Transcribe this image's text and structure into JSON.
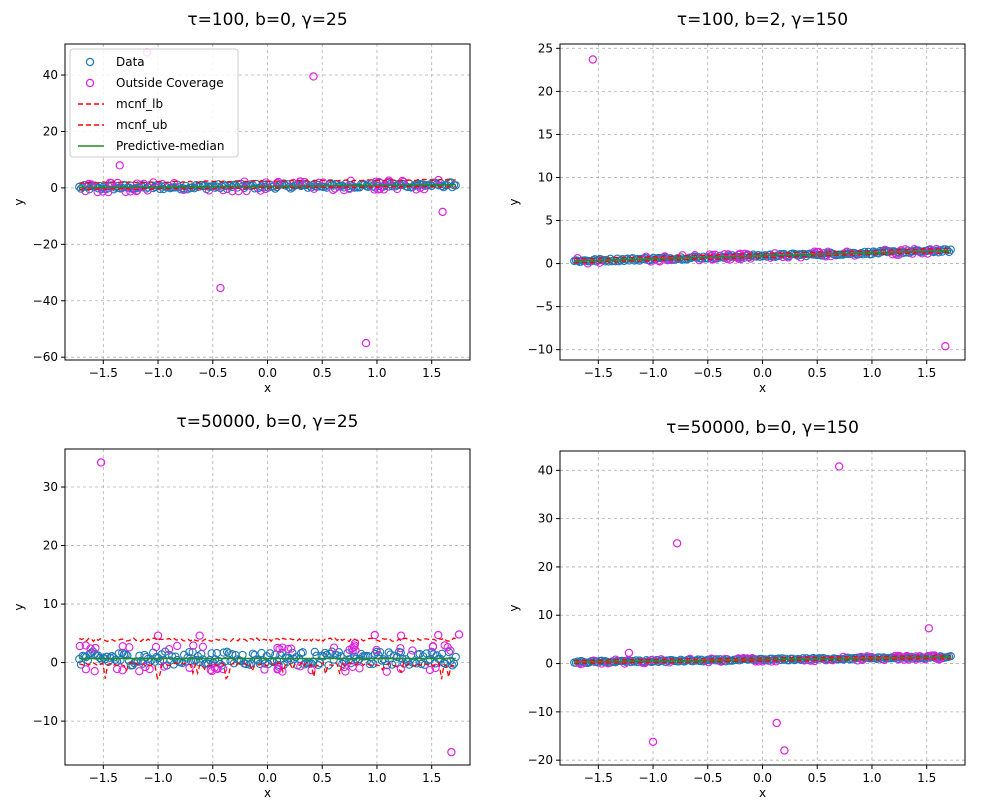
{
  "colors": {
    "data": "#1f77b4",
    "outside": "#e020e0",
    "mcnf_lb": "#ff0000",
    "mcnf_ub": "#ff0000",
    "median": "#228b22",
    "grid": "#b0b0b0"
  },
  "legend_entries": [
    {
      "key": "data",
      "label": "Data",
      "kind": "marker"
    },
    {
      "key": "outside",
      "label": "Outside Coverage",
      "kind": "marker"
    },
    {
      "key": "mcnf_lb",
      "label": "mcnf_lb",
      "kind": "dashed"
    },
    {
      "key": "mcnf_ub",
      "label": "mcnf_ub",
      "kind": "dashed"
    },
    {
      "key": "median",
      "label": "Predictive-median",
      "kind": "solid"
    }
  ],
  "chart_data": [
    {
      "type": "scatter",
      "title": "τ=100, b=0, γ=25",
      "xlabel": "x",
      "ylabel": "y",
      "xlim": [
        -1.85,
        1.85
      ],
      "ylim": [
        -61,
        51
      ],
      "xticks": [
        -1.5,
        -1.0,
        -0.5,
        0.0,
        0.5,
        1.0,
        1.5
      ],
      "yticks": [
        -60,
        -40,
        -20,
        0,
        20,
        40
      ],
      "grid": true,
      "legend": "top-left",
      "band": {
        "lb_offset": -0.6,
        "ub_offset": 1.8,
        "median_slope": 0.3,
        "median_intercept": 0.6,
        "data_spread": 1.8,
        "noise": 0.5
      },
      "outliers": [
        [
          -1.1,
          48
        ],
        [
          0.42,
          39.5
        ],
        [
          -1.35,
          8
        ],
        [
          -0.43,
          -35.5
        ],
        [
          0.9,
          -55
        ],
        [
          1.6,
          -8.5
        ]
      ]
    },
    {
      "type": "scatter",
      "title": "τ=100, b=2, γ=150",
      "xlabel": "x",
      "ylabel": "y",
      "xlim": [
        -1.85,
        1.85
      ],
      "ylim": [
        -11.2,
        25.5
      ],
      "xticks": [
        -1.5,
        -1.0,
        -0.5,
        0.0,
        0.5,
        1.0,
        1.5
      ],
      "yticks": [
        -10,
        -5,
        0,
        5,
        10,
        15,
        20,
        25
      ],
      "grid": true,
      "legend": "none",
      "band": {
        "lb_offset": -0.2,
        "ub_offset": 0.25,
        "median_slope": 0.35,
        "median_intercept": 0.9,
        "data_spread": 0.35,
        "noise": 0.12
      },
      "outliers": [
        [
          -1.55,
          23.7
        ],
        [
          1.67,
          -9.6
        ]
      ]
    },
    {
      "type": "scatter",
      "title": "τ=50000, b=0, γ=25",
      "xlabel": "x",
      "ylabel": "y",
      "xlim": [
        -1.85,
        1.85
      ],
      "ylim": [
        -17.5,
        36.5
      ],
      "xticks": [
        -1.5,
        -1.0,
        -0.5,
        0.0,
        0.5,
        1.0,
        1.5
      ],
      "yticks": [
        -10,
        0,
        10,
        20,
        30
      ],
      "grid": true,
      "legend": "none",
      "band": {
        "lb_offset": -1.0,
        "ub_offset": 3.2,
        "median_slope": 0.0,
        "median_intercept": 0.7,
        "data_spread": 2.4,
        "noise": 0.6
      },
      "outliers": [
        [
          -1.52,
          34.2
        ],
        [
          -1.0,
          4.6
        ],
        [
          -0.62,
          4.6
        ],
        [
          0.8,
          3.3
        ],
        [
          0.98,
          4.7
        ],
        [
          1.22,
          4.6
        ],
        [
          1.56,
          4.7
        ],
        [
          1.75,
          4.8
        ],
        [
          1.68,
          -15.3
        ]
      ]
    },
    {
      "type": "scatter",
      "title": "τ=50000, b=0, γ=150",
      "xlabel": "x",
      "ylabel": "y",
      "xlim": [
        -1.85,
        1.85
      ],
      "ylim": [
        -21,
        44
      ],
      "xticks": [
        -1.5,
        -1.0,
        -0.5,
        0.0,
        0.5,
        1.0,
        1.5
      ],
      "yticks": [
        -20,
        -10,
        0,
        10,
        20,
        30,
        40
      ],
      "grid": true,
      "legend": "none",
      "band": {
        "lb_offset": -0.3,
        "ub_offset": 0.35,
        "median_slope": 0.3,
        "median_intercept": 0.8,
        "data_spread": 0.45,
        "noise": 0.15
      },
      "outliers": [
        [
          0.7,
          40.8
        ],
        [
          -0.78,
          24.9
        ],
        [
          -1.22,
          2.2
        ],
        [
          -1.0,
          -16.2
        ],
        [
          0.13,
          -12.3
        ],
        [
          0.2,
          -18.0
        ],
        [
          1.52,
          7.3
        ]
      ]
    }
  ]
}
